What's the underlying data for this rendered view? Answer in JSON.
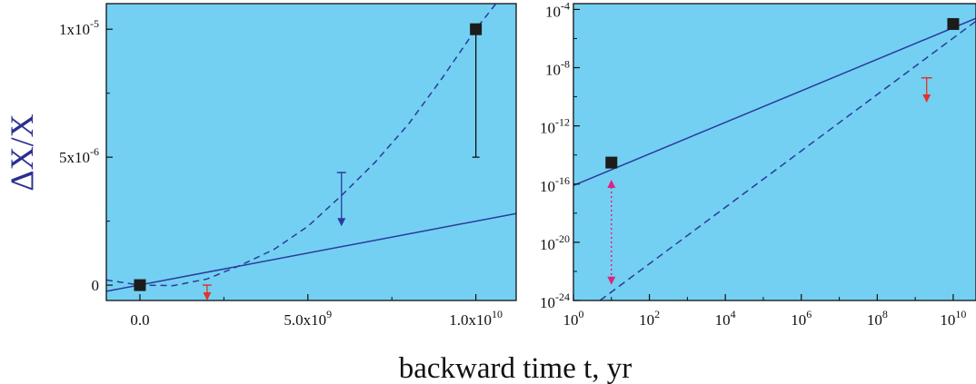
{
  "chart_data": [
    {
      "type": "scatter",
      "ylabel_symbol": "Δ",
      "ylabel_rest": "X/X",
      "xlabel": "backward time t, yr",
      "x_scale": "linear",
      "y_scale": "linear",
      "xlim": [
        -1000000000.0,
        11200000000.0
      ],
      "ylim": [
        -6e-07,
        1.1e-05
      ],
      "background": "#73d0f2",
      "x_ticks": [
        {
          "value": 0,
          "mant": "0.0",
          "exp": ""
        },
        {
          "value": 5000000000.0,
          "mant": "5.0x10",
          "exp": "9"
        },
        {
          "value": 10000000000.0,
          "mant": "1.0x10",
          "exp": "10"
        }
      ],
      "y_ticks": [
        {
          "value": 0,
          "mant": "0",
          "exp": ""
        },
        {
          "value": 5e-06,
          "mant": "5x10",
          "exp": "-6"
        },
        {
          "value": 1e-05,
          "mant": "1x10",
          "exp": "-5"
        }
      ],
      "points": [
        {
          "x": 0,
          "y": 0
        },
        {
          "x": 10000000000.0,
          "y": 1e-05,
          "err_low": 5e-06
        }
      ],
      "upper_limits": [
        {
          "x": 2000000000.0,
          "y": 0.0,
          "y_to": -6e-07,
          "color": "#e0342a"
        },
        {
          "x": 6000000000.0,
          "y": 4.4e-06,
          "y_to": 2.3e-06,
          "color": "#2b3a9c"
        }
      ],
      "series": [
        {
          "style": "solid",
          "color": "#2b3a9c",
          "x": [
            -1000000000.0,
            11200000000.0
          ],
          "y": [
            -2.4e-07,
            2.8e-06
          ]
        },
        {
          "style": "dashed",
          "color": "#2b3a9c",
          "x": [
            -1000000000.0,
            0,
            1000000000.0,
            2000000000.0,
            3000000000.0,
            4000000000.0,
            5000000000.0,
            6000000000.0,
            7000000000.0,
            8000000000.0,
            9000000000.0,
            10000000000.0,
            10600000000.0
          ],
          "y": [
            2e-07,
            0,
            -2e-08,
            2.4e-07,
            7.8e-07,
            1.4e-06,
            2.3e-06,
            3.5e-06,
            4.8e-06,
            6.3e-06,
            8.1e-06,
            1e-05,
            1.1e-05
          ]
        }
      ]
    },
    {
      "type": "scatter",
      "x_scale": "log",
      "y_scale": "log",
      "xlim_exp": [
        0,
        10.6
      ],
      "ylim_exp": [
        -24,
        -3.6
      ],
      "background": "#73d0f2",
      "x_ticks": [
        {
          "exp_value": 0,
          "mant": "10",
          "exp": "0"
        },
        {
          "exp_value": 2,
          "mant": "10",
          "exp": "2"
        },
        {
          "exp_value": 4,
          "mant": "10",
          "exp": "4"
        },
        {
          "exp_value": 6,
          "mant": "10",
          "exp": "6"
        },
        {
          "exp_value": 8,
          "mant": "10",
          "exp": "8"
        },
        {
          "exp_value": 10,
          "mant": "10",
          "exp": "10"
        }
      ],
      "y_ticks": [
        {
          "exp_value": -24,
          "mant": "10",
          "exp": "-24"
        },
        {
          "exp_value": -20,
          "mant": "10",
          "exp": "-20"
        },
        {
          "exp_value": -16,
          "mant": "10",
          "exp": "-16"
        },
        {
          "exp_value": -12,
          "mant": "10",
          "exp": "-12"
        },
        {
          "exp_value": -8,
          "mant": "10",
          "exp": "-8"
        },
        {
          "exp_value": -4,
          "mant": "10",
          "exp": "-4"
        }
      ],
      "points": [
        {
          "x": 10,
          "y": 3e-15
        },
        {
          "x": 10000000000.0,
          "y": 1e-05
        }
      ],
      "upper_limits": [
        {
          "x": 2000000000.0,
          "y": 2e-09,
          "y_to": 4e-11,
          "color": "#e0342a"
        }
      ],
      "double_arrows": [
        {
          "x": 10,
          "y1": 2e-16,
          "y2": 1.2e-23,
          "color": "#e0237e"
        }
      ],
      "series": [
        {
          "style": "solid",
          "color": "#2b3a9c",
          "x": [
            1,
            40000000000.0
          ],
          "y": [
            8e-17,
            2.5e-05
          ]
        },
        {
          "style": "dashed",
          "color": "#2b3a9c",
          "x": [
            5,
            40000000000.0
          ],
          "y": [
            1e-24,
            1.6e-05
          ]
        }
      ]
    }
  ]
}
